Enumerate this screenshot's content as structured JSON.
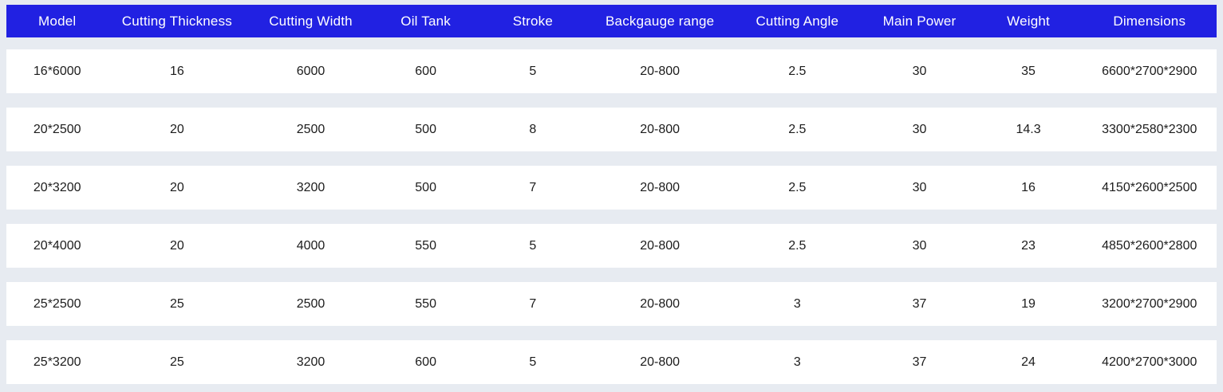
{
  "colors": {
    "header_bg": "#2121E2",
    "header_text": "#FFFFFF",
    "page_bg": "#E7EBF1",
    "row_bg": "#FFFFFF",
    "cell_text": "#1C1C1C"
  },
  "chart_data": {
    "type": "table",
    "columns": [
      "Model",
      "Cutting Thickness",
      "Cutting Width",
      "Oil Tank",
      "Stroke",
      "Backgauge range",
      "Cutting Angle",
      "Main Power",
      "Weight",
      "Dimensions"
    ],
    "rows": [
      [
        "16*6000",
        "16",
        "6000",
        "600",
        "5",
        "20-800",
        "2.5",
        "30",
        "35",
        "6600*2700*2900"
      ],
      [
        "20*2500",
        "20",
        "2500",
        "500",
        "8",
        "20-800",
        "2.5",
        "30",
        "14.3",
        "3300*2580*2300"
      ],
      [
        "20*3200",
        "20",
        "3200",
        "500",
        "7",
        "20-800",
        "2.5",
        "30",
        "16",
        "4150*2600*2500"
      ],
      [
        "20*4000",
        "20",
        "4000",
        "550",
        "5",
        "20-800",
        "2.5",
        "30",
        "23",
        "4850*2600*2800"
      ],
      [
        "25*2500",
        "25",
        "2500",
        "550",
        "7",
        "20-800",
        "3",
        "37",
        "19",
        "3200*2700*2900"
      ],
      [
        "25*3200",
        "25",
        "3200",
        "600",
        "5",
        "20-800",
        "3",
        "37",
        "24",
        "4200*2700*3000"
      ]
    ]
  }
}
